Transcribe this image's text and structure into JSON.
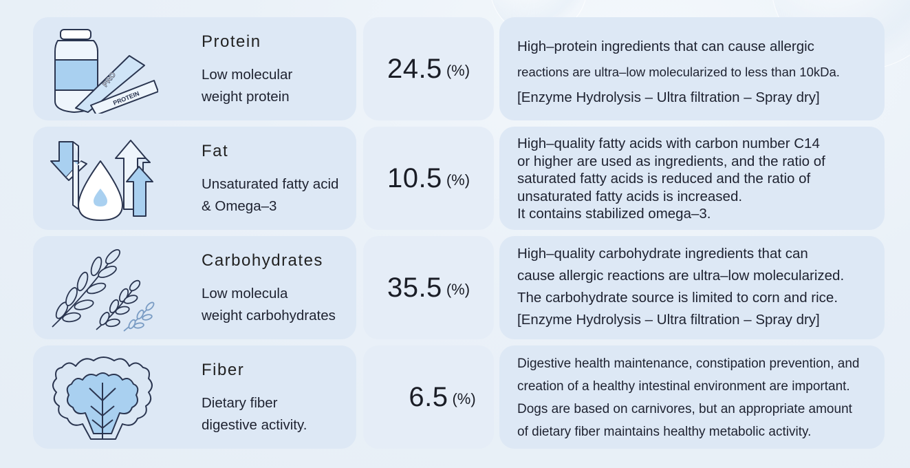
{
  "rows": [
    {
      "title": "Protein",
      "subtitle": [
        "Low molecular",
        "weight protein"
      ],
      "value": "24.5",
      "unit": "(%)",
      "icon": "protein-powder-icon",
      "description": [
        "High–protein ingredients that can cause allergic",
        "reactions are ultra–low molecularized to less than 10kDa.",
        "[Enzyme Hydrolysis – Ultra filtration – Spray dry]"
      ],
      "icon_labels": [
        "PRO",
        "PROTEIN"
      ]
    },
    {
      "title": "Fat",
      "subtitle": [
        "Unsaturated fatty acid",
        "& Omega–3"
      ],
      "value": "10.5",
      "unit": "(%)",
      "icon": "oil-drop-arrows-icon",
      "description": [
        "High–quality fatty acids with carbon number C14",
        "or higher are used as ingredients, and the ratio of",
        "saturated fatty acids is reduced and the ratio of",
        "unsaturated fatty acids is increased.",
        "It contains stabilized omega–3."
      ]
    },
    {
      "title": "Carbohydrates",
      "subtitle": [
        "Low molecula",
        "weight carbohydrates"
      ],
      "value": "35.5",
      "unit": "(%)",
      "icon": "grain-leaves-icon",
      "description": [
        "High–quality carbohydrate ingredients that can",
        "cause allergic reactions are ultra–low molecularized.",
        "The carbohydrate source is limited to corn and rice.",
        "[Enzyme Hydrolysis – Ultra filtration – Spray dry]"
      ]
    },
    {
      "title": "Fiber",
      "subtitle": [
        "Dietary fiber",
        "digestive activity."
      ],
      "value": "6.5",
      "unit": "(%)",
      "icon": "leafy-vegetable-icon",
      "description": [
        "Digestive health maintenance, constipation prevention, and",
        "creation of a healthy intestinal environment are important.",
        "Dogs are based on carnivores, but an appropriate amount",
        "of dietary fiber maintains healthy metabolic activity."
      ]
    }
  ],
  "colors": {
    "card": "#dde8f5",
    "icon_fill": "#a9d0f0",
    "icon_stroke": "#2a3550"
  }
}
